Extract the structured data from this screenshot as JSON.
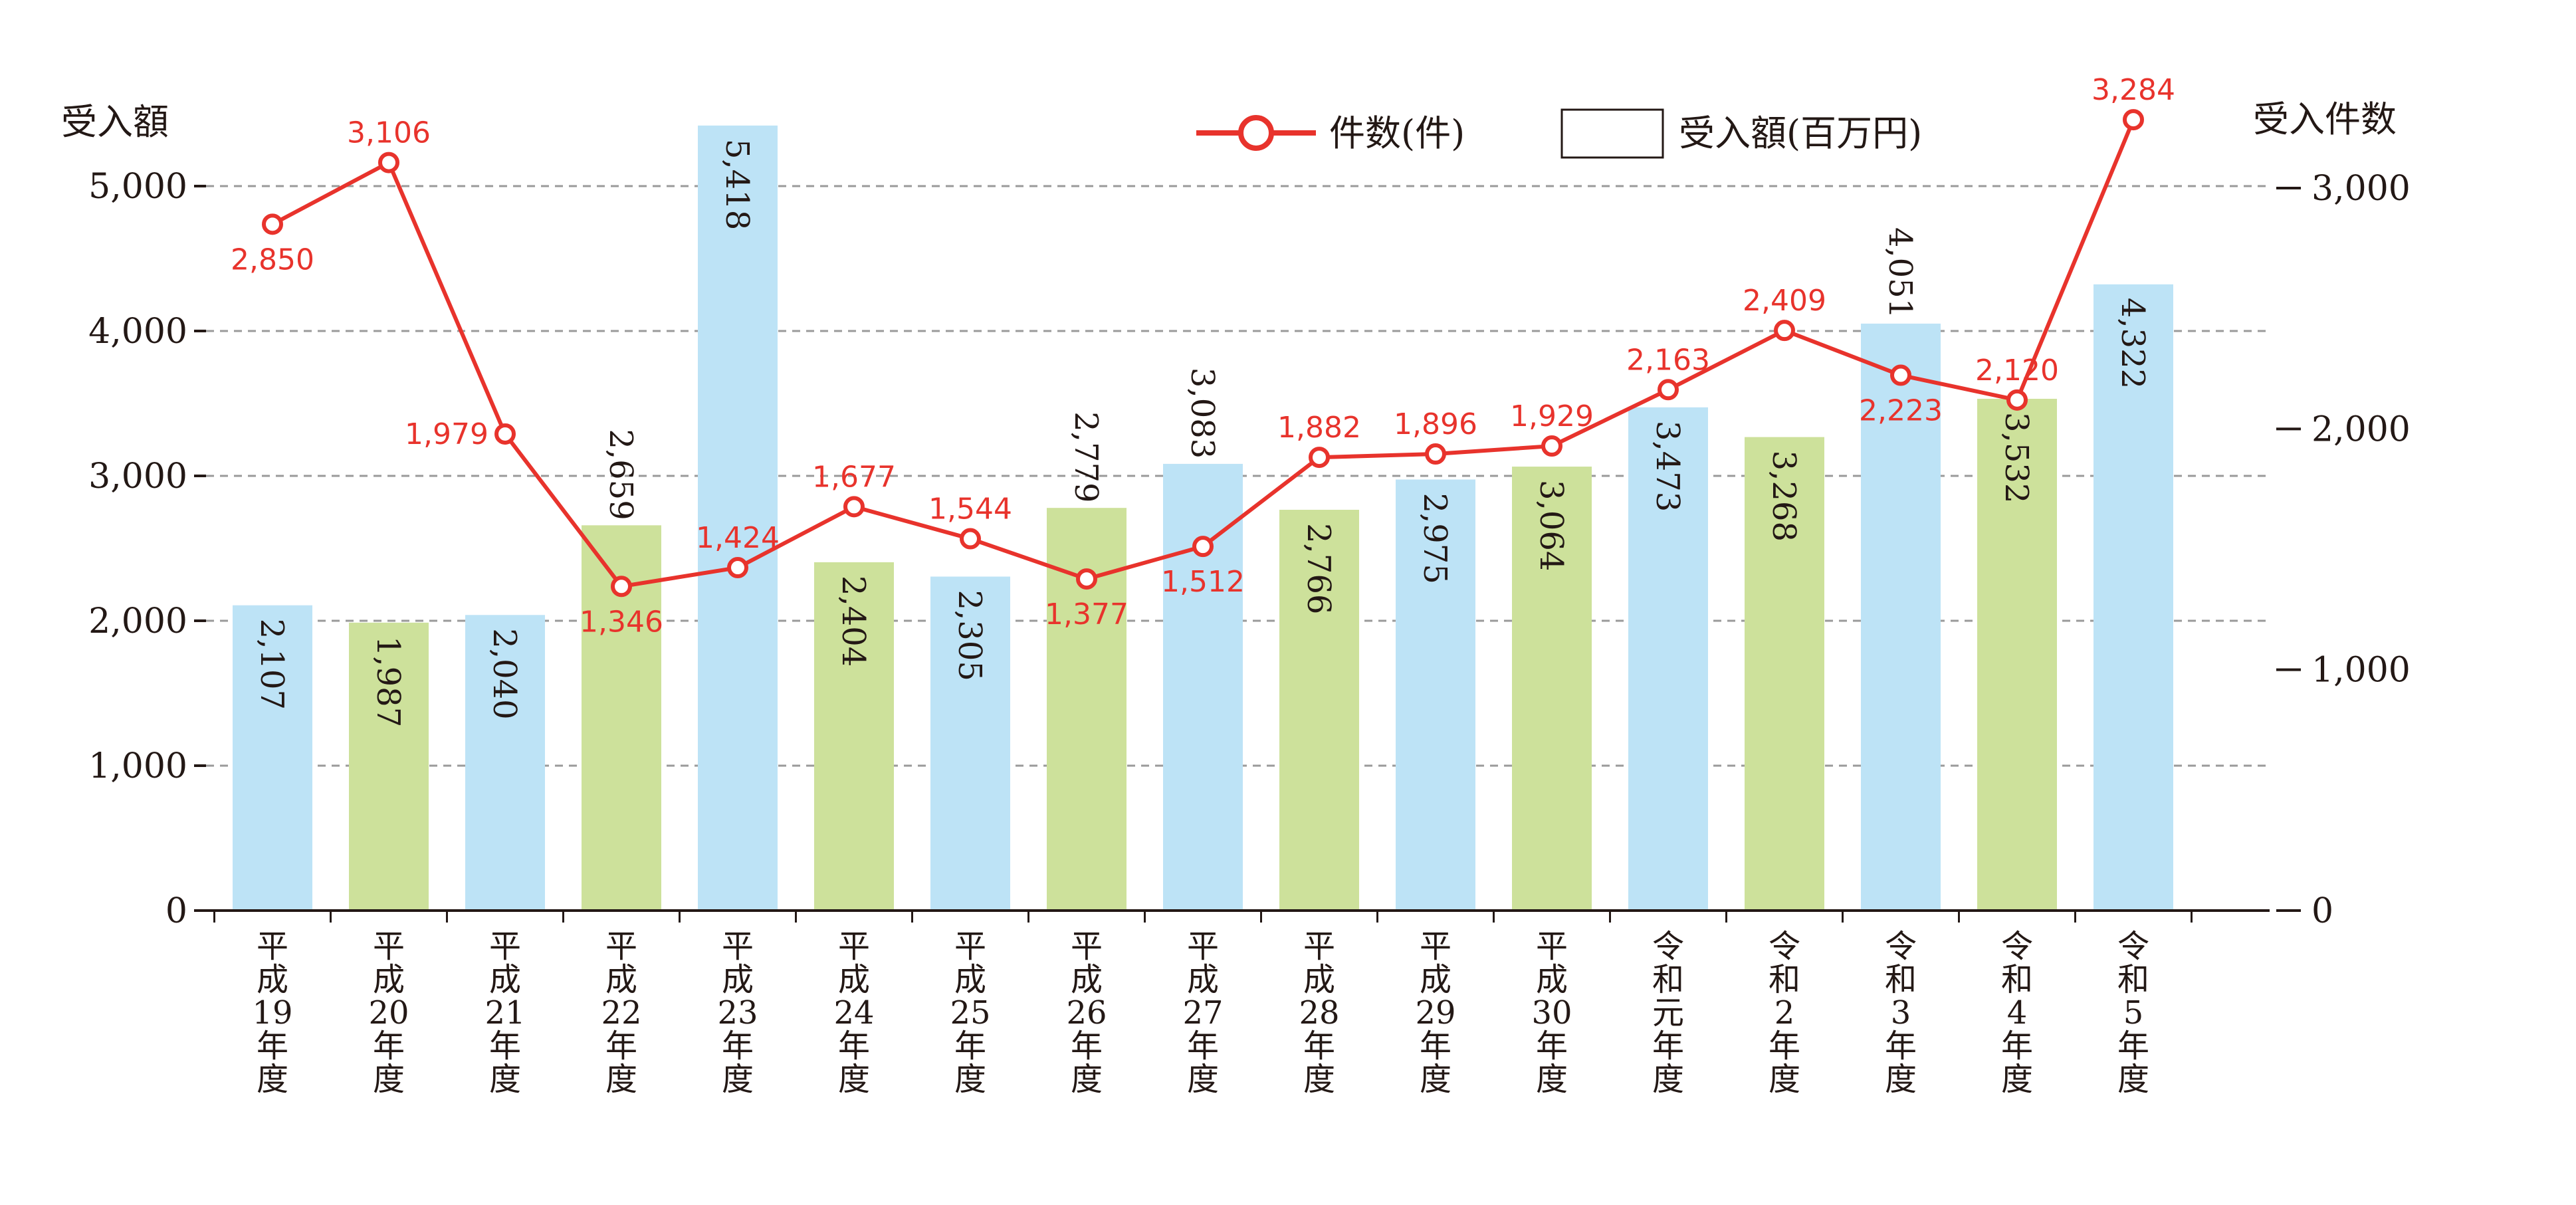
{
  "chart_data": {
    "type": "bar+line",
    "left_axis_title": "受入額",
    "right_axis_title": "受入件数",
    "categories": [
      "平成19年度",
      "平成20年度",
      "平成21年度",
      "平成22年度",
      "平成23年度",
      "平成24年度",
      "平成25年度",
      "平成26年度",
      "平成27年度",
      "平成28年度",
      "平成29年度",
      "平成30年度",
      "令和元年度",
      "令和2年度",
      "令和3年度",
      "令和4年度",
      "令和5年度"
    ],
    "category_lines": [
      [
        "平",
        "成",
        "19",
        "年",
        "度"
      ],
      [
        "平",
        "成",
        "20",
        "年",
        "度"
      ],
      [
        "平",
        "成",
        "21",
        "年",
        "度"
      ],
      [
        "平",
        "成",
        "22",
        "年",
        "度"
      ],
      [
        "平",
        "成",
        "23",
        "年",
        "度"
      ],
      [
        "平",
        "成",
        "24",
        "年",
        "度"
      ],
      [
        "平",
        "成",
        "25",
        "年",
        "度"
      ],
      [
        "平",
        "成",
        "26",
        "年",
        "度"
      ],
      [
        "平",
        "成",
        "27",
        "年",
        "度"
      ],
      [
        "平",
        "成",
        "28",
        "年",
        "度"
      ],
      [
        "平",
        "成",
        "29",
        "年",
        "度"
      ],
      [
        "平",
        "成",
        "30",
        "年",
        "度"
      ],
      [
        "令",
        "和",
        "元",
        "年",
        "度"
      ],
      [
        "令",
        "和",
        "2",
        "年",
        "度"
      ],
      [
        "令",
        "和",
        "3",
        "年",
        "度"
      ],
      [
        "令",
        "和",
        "4",
        "年",
        "度"
      ],
      [
        "令",
        "和",
        "5",
        "年",
        "度"
      ]
    ],
    "series": [
      {
        "name": "受入額(百万円)",
        "type": "bar",
        "axis": "left",
        "values": [
          2107,
          1987,
          2040,
          2659,
          5418,
          2404,
          2305,
          2779,
          3083,
          2766,
          2975,
          3064,
          3473,
          3268,
          4051,
          3532,
          4322
        ],
        "labels": [
          "2,107",
          "1,987",
          "2,040",
          "2,659",
          "5,418",
          "2,404",
          "2,305",
          "2,779",
          "3,083",
          "2,766",
          "2,975",
          "3,064",
          "3,473",
          "3,268",
          "4,051",
          "3,532",
          "4,322"
        ],
        "label_inside": [
          true,
          true,
          true,
          false,
          true,
          true,
          true,
          false,
          false,
          true,
          true,
          true,
          true,
          true,
          false,
          true,
          true
        ]
      },
      {
        "name": "件数(件)",
        "type": "line",
        "axis": "right",
        "values": [
          2850,
          3106,
          1979,
          1346,
          1424,
          1677,
          1544,
          1377,
          1512,
          1882,
          1896,
          1929,
          2163,
          2409,
          2223,
          2120,
          3284
        ],
        "labels": [
          "2,850",
          "3,106",
          "1,979",
          "1,346",
          "1,424",
          "1,677",
          "1,544",
          "1,377",
          "1,512",
          "1,882",
          "1,896",
          "1,929",
          "2,163",
          "2,409",
          "2,223",
          "2,120",
          "3,284"
        ],
        "label_position": [
          "below",
          "above",
          "left",
          "below",
          "above",
          "above",
          "above",
          "below",
          "below",
          "above",
          "above",
          "above",
          "above",
          "above",
          "below",
          "above",
          "above"
        ]
      }
    ],
    "left_axis": {
      "ylim": [
        0,
        5000
      ],
      "ticks": [
        0,
        1000,
        2000,
        3000,
        4000,
        5000
      ],
      "tick_labels": [
        "0",
        "1,000",
        "2,000",
        "3,000",
        "4,000",
        "5,000"
      ]
    },
    "right_axis": {
      "ylim": [
        0,
        3000
      ],
      "ticks": [
        0,
        1000,
        2000,
        3000
      ],
      "tick_labels": [
        "0",
        "1,000",
        "2,000",
        "3,000"
      ]
    },
    "legend": {
      "placement": "top-right",
      "entries": [
        "件数(件)",
        "受入額(百万円)"
      ]
    },
    "grid": "dashed horizontal",
    "colors": {
      "bar_alternate": [
        "#bde3f6",
        "#cde19b"
      ],
      "line": "#e8332c",
      "marker_fill": "#ffffff",
      "line_label": "#e8332c",
      "text": "#231815",
      "grid": "#9a9a9a"
    }
  }
}
